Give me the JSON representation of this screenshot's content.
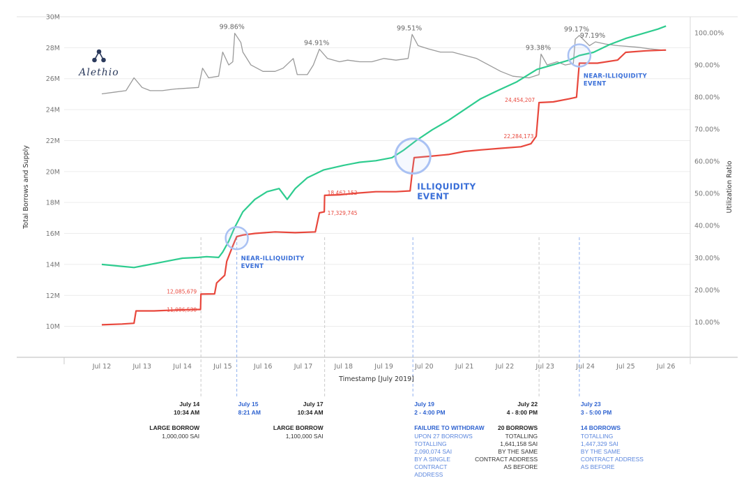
{
  "logo": {
    "text": "Alethio"
  },
  "colors": {
    "borrows": "#e8473c",
    "supply": "#2ecc8f",
    "utilization": "#9a9a9a",
    "event": "#3a6fd8",
    "grid": "#ececec"
  },
  "chart_data": {
    "type": "line",
    "xlabel": "Timestamp [July 2019]",
    "ylabel_left": "Total Borrows and Supply",
    "ylabel_right": "Utilization Ratio",
    "x_ticks": [
      "Jul 12",
      "Jul 13",
      "Jul 14",
      "Jul 15",
      "Jul 16",
      "Jul 17",
      "Jul 18",
      "Jul 19",
      "Jul 20",
      "Jul 21",
      "Jul 22",
      "Jul 23",
      "Jul 24",
      "Jul 25",
      "Jul 26"
    ],
    "left_ticks": [
      "10M",
      "12M",
      "14M",
      "16M",
      "18M",
      "20M",
      "22M",
      "24M",
      "26M",
      "28M",
      "30M"
    ],
    "right_ticks": [
      "10.00%",
      "20.00%",
      "30.00%",
      "40.00%",
      "50.00%",
      "60.00%",
      "70.00%",
      "80.00%",
      "90.00%",
      "100.00%"
    ],
    "ylim_left": [
      8000000,
      30000000
    ],
    "ylim_right": [
      -1.0,
      105.0
    ],
    "xlim": [
      12,
      26.25
    ],
    "grid": true,
    "series": [
      {
        "key": "utilization",
        "axis": "right",
        "points": [
          [
            12,
            81
          ],
          [
            12.3,
            81.5
          ],
          [
            12.6,
            82
          ],
          [
            12.8,
            86
          ],
          [
            13,
            83
          ],
          [
            13.2,
            82
          ],
          [
            13.5,
            82
          ],
          [
            13.8,
            82.5
          ],
          [
            14.4,
            83
          ],
          [
            14.5,
            89
          ],
          [
            14.65,
            86
          ],
          [
            14.9,
            86.5
          ],
          [
            15,
            94
          ],
          [
            15.15,
            90
          ],
          [
            15.25,
            91
          ],
          [
            15.3,
            99.86
          ],
          [
            15.45,
            97
          ],
          [
            15.5,
            94
          ],
          [
            15.7,
            90
          ],
          [
            16,
            88
          ],
          [
            16.3,
            88
          ],
          [
            16.5,
            89
          ],
          [
            16.75,
            92
          ],
          [
            16.85,
            87
          ],
          [
            17.1,
            87
          ],
          [
            17.25,
            90
          ],
          [
            17.4,
            94.91
          ],
          [
            17.6,
            92
          ],
          [
            17.9,
            91
          ],
          [
            18.1,
            91.5
          ],
          [
            18.4,
            91
          ],
          [
            18.7,
            91
          ],
          [
            19.0,
            92
          ],
          [
            19.3,
            91.5
          ],
          [
            19.6,
            92
          ],
          [
            19.7,
            99.51
          ],
          [
            19.85,
            96
          ],
          [
            20.1,
            95
          ],
          [
            20.4,
            94
          ],
          [
            20.7,
            94
          ],
          [
            21.0,
            93
          ],
          [
            21.3,
            92
          ],
          [
            21.6,
            90
          ],
          [
            21.9,
            88
          ],
          [
            22.2,
            86.5
          ],
          [
            22.6,
            86
          ],
          [
            22.85,
            87
          ],
          [
            22.9,
            93.38
          ],
          [
            23.05,
            90
          ],
          [
            23.3,
            91
          ],
          [
            23.5,
            90
          ],
          [
            23.7,
            90.5
          ],
          [
            23.75,
            98
          ],
          [
            23.85,
            99.17
          ],
          [
            24.1,
            96
          ],
          [
            24.25,
            97.19
          ],
          [
            24.5,
            96.5
          ],
          [
            24.8,
            96
          ],
          [
            25.3,
            95.5
          ],
          [
            25.6,
            95
          ],
          [
            26,
            94.5
          ]
        ]
      },
      {
        "key": "supply",
        "axis": "left",
        "points": [
          [
            12,
            14000000
          ],
          [
            12.4,
            13900000
          ],
          [
            12.8,
            13800000
          ],
          [
            13.1,
            13950000
          ],
          [
            13.5,
            14150000
          ],
          [
            14,
            14400000
          ],
          [
            14.4,
            14450000
          ],
          [
            14.6,
            14500000
          ],
          [
            14.9,
            14450000
          ],
          [
            15.0,
            14800000
          ],
          [
            15.15,
            15500000
          ],
          [
            15.3,
            16400000
          ],
          [
            15.5,
            17400000
          ],
          [
            15.8,
            18200000
          ],
          [
            16.1,
            18700000
          ],
          [
            16.4,
            18900000
          ],
          [
            16.6,
            18200000
          ],
          [
            16.8,
            18900000
          ],
          [
            17.1,
            19600000
          ],
          [
            17.5,
            20100000
          ],
          [
            18,
            20400000
          ],
          [
            18.4,
            20600000
          ],
          [
            18.8,
            20700000
          ],
          [
            19.2,
            20900000
          ],
          [
            19.5,
            21400000
          ],
          [
            19.8,
            22000000
          ],
          [
            20.2,
            22700000
          ],
          [
            20.6,
            23300000
          ],
          [
            21.0,
            24000000
          ],
          [
            21.4,
            24700000
          ],
          [
            21.8,
            25200000
          ],
          [
            22.3,
            25800000
          ],
          [
            22.8,
            26600000
          ],
          [
            23.2,
            26900000
          ],
          [
            23.6,
            27200000
          ],
          [
            23.85,
            27500000
          ],
          [
            24.2,
            27700000
          ],
          [
            24.6,
            28200000
          ],
          [
            25.0,
            28600000
          ],
          [
            25.4,
            28900000
          ],
          [
            25.8,
            29200000
          ],
          [
            26,
            29400000
          ]
        ]
      },
      {
        "key": "borrows",
        "axis": "left",
        "points": [
          [
            12,
            10100000
          ],
          [
            12.5,
            10150000
          ],
          [
            12.8,
            10200000
          ],
          [
            12.85,
            11000000
          ],
          [
            13.3,
            11000000
          ],
          [
            13.8,
            11050000
          ],
          [
            14.3,
            11086530
          ],
          [
            14.45,
            11086530
          ],
          [
            14.46,
            12085679
          ],
          [
            14.8,
            12100000
          ],
          [
            14.85,
            12800000
          ],
          [
            15.05,
            13300000
          ],
          [
            15.1,
            14200000
          ],
          [
            15.25,
            15200000
          ],
          [
            15.3,
            15500000
          ],
          [
            15.35,
            15800000
          ],
          [
            15.5,
            15900000
          ],
          [
            15.8,
            16000000
          ],
          [
            16.3,
            16100000
          ],
          [
            16.8,
            16050000
          ],
          [
            17.3,
            16100000
          ],
          [
            17.4,
            17329745
          ],
          [
            17.52,
            17400000
          ],
          [
            17.53,
            18462152
          ],
          [
            17.9,
            18500000
          ],
          [
            18.3,
            18600000
          ],
          [
            18.8,
            18700000
          ],
          [
            19.3,
            18700000
          ],
          [
            19.65,
            18750000
          ],
          [
            19.7,
            19900000
          ],
          [
            19.75,
            20900000
          ],
          [
            20.2,
            21000000
          ],
          [
            20.6,
            21100000
          ],
          [
            21.0,
            21300000
          ],
          [
            21.4,
            21400000
          ],
          [
            21.9,
            21500000
          ],
          [
            22.4,
            21600000
          ],
          [
            22.65,
            21800000
          ],
          [
            22.78,
            22284173
          ],
          [
            22.85,
            24454207
          ],
          [
            23.2,
            24500000
          ],
          [
            23.6,
            24700000
          ],
          [
            23.78,
            24800000
          ],
          [
            23.85,
            27000000
          ],
          [
            24.3,
            27000000
          ],
          [
            24.8,
            27200000
          ],
          [
            25.0,
            27700000
          ],
          [
            25.5,
            27800000
          ],
          [
            26,
            27850000
          ]
        ]
      }
    ],
    "peak_labels": [
      {
        "x": 15.3,
        "y": 99.86,
        "text": "99.86%"
      },
      {
        "x": 17.4,
        "y": 94.91,
        "text": "94.91%"
      },
      {
        "x": 19.7,
        "y": 99.51,
        "text": "99.51%"
      },
      {
        "x": 22.9,
        "y": 93.38,
        "text": "93.38%"
      },
      {
        "x": 23.85,
        "y": 99.17,
        "text": "99.17%"
      },
      {
        "x": 24.25,
        "y": 97.19,
        "text": "97.19%"
      }
    ],
    "borrow_labels": [
      {
        "x": 14.46,
        "y": 12085679,
        "text": "12,085,679",
        "anchor": "end"
      },
      {
        "x": 14.46,
        "y": 11086530,
        "text": "11,086,530",
        "anchor": "end"
      },
      {
        "x": 17.53,
        "y": 18462152,
        "text": "18,462,152",
        "anchor": "start"
      },
      {
        "x": 17.53,
        "y": 17329745,
        "text": "17,329,745",
        "anchor": "start"
      },
      {
        "x": 22.85,
        "y": 24454207,
        "text": "24,454,207",
        "anchor": "end"
      },
      {
        "x": 22.82,
        "y": 22284173,
        "text": "22,284,173",
        "anchor": "end"
      }
    ],
    "event_markers": [
      {
        "x": 15.35,
        "y": 15700000,
        "size": "small",
        "lines": [
          "NEAR-ILLIQUIDITY",
          "EVENT"
        ]
      },
      {
        "x": 19.72,
        "y": 21000000,
        "size": "large",
        "lines": [
          "ILLIQUIDITY",
          "EVENT"
        ]
      },
      {
        "x": 23.85,
        "y": 27500000,
        "size": "small",
        "lines": [
          "NEAR-ILLIQUIDITY",
          "EVENT"
        ]
      }
    ],
    "timeline": [
      {
        "x": 14.46,
        "align": "right",
        "highlight": false,
        "date": "July 14",
        "time": "10:34 AM",
        "title": "LARGE BORROW",
        "body": [
          "1,000,000 SAI"
        ]
      },
      {
        "x": 15.35,
        "align": "left",
        "highlight": true,
        "date": "July 15",
        "time": "8:21 AM",
        "title": "",
        "body": []
      },
      {
        "x": 17.53,
        "align": "right",
        "highlight": false,
        "date": "July 17",
        "time": "10:34 AM",
        "title": "LARGE BORROW",
        "body": [
          "1,100,000 SAI"
        ]
      },
      {
        "x": 19.72,
        "align": "left",
        "highlight": true,
        "date": "July 19",
        "time": "2 - 4:00 PM",
        "title": "FAILURE TO WITHDRAW",
        "body": [
          "UPON 27 BORROWS",
          "TOTALLING",
          "2,090,074 SAI",
          "BY A SINGLE",
          "CONTRACT",
          "ADDRESS"
        ]
      },
      {
        "x": 22.85,
        "align": "right",
        "highlight": false,
        "date": "July 22",
        "time": "4 - 8:00 PM",
        "title": "20 BORROWS",
        "body": [
          "TOTALLING",
          "1,641,158 SAI",
          "BY THE SAME",
          "CONTRACT ADDRESS",
          "AS BEFORE"
        ]
      },
      {
        "x": 23.85,
        "align": "left",
        "highlight": true,
        "date": "July 23",
        "time": "3 - 5:00 PM",
        "title": "14 BORROWS",
        "body": [
          "TOTALLING",
          "1,447,329 SAI",
          "BY THE SAME",
          "CONTRACT ADDRESS",
          "AS BEFORE"
        ]
      }
    ]
  }
}
